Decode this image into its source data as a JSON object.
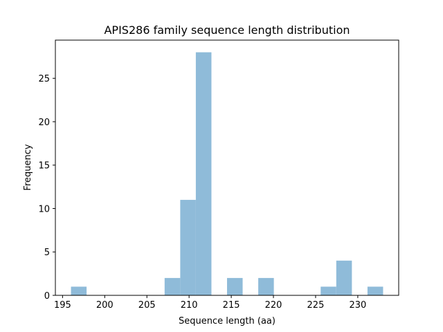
{
  "chart_data": {
    "type": "bar",
    "title": "APIS286 family sequence length distribution",
    "xlabel": "Sequence length (aa)",
    "ylabel": "Frequency",
    "color": "#8fbbd9",
    "bins": [
      {
        "start": 196.0,
        "end": 197.85,
        "count": 1
      },
      {
        "start": 197.85,
        "end": 199.7,
        "count": 0
      },
      {
        "start": 199.7,
        "end": 201.55,
        "count": 0
      },
      {
        "start": 201.55,
        "end": 203.4,
        "count": 0
      },
      {
        "start": 203.4,
        "end": 205.25,
        "count": 0
      },
      {
        "start": 205.25,
        "end": 207.1,
        "count": 0
      },
      {
        "start": 207.1,
        "end": 208.95,
        "count": 2
      },
      {
        "start": 208.95,
        "end": 210.8,
        "count": 11
      },
      {
        "start": 210.8,
        "end": 212.65,
        "count": 28
      },
      {
        "start": 212.65,
        "end": 214.5,
        "count": 0
      },
      {
        "start": 214.5,
        "end": 216.35,
        "count": 2
      },
      {
        "start": 216.35,
        "end": 218.2,
        "count": 0
      },
      {
        "start": 218.2,
        "end": 220.05,
        "count": 2
      },
      {
        "start": 220.05,
        "end": 221.9,
        "count": 0
      },
      {
        "start": 221.9,
        "end": 223.75,
        "count": 0
      },
      {
        "start": 223.75,
        "end": 225.6,
        "count": 0
      },
      {
        "start": 225.6,
        "end": 227.45,
        "count": 1
      },
      {
        "start": 227.45,
        "end": 229.3,
        "count": 4
      },
      {
        "start": 229.3,
        "end": 231.15,
        "count": 0
      },
      {
        "start": 231.15,
        "end": 233.0,
        "count": 1
      }
    ],
    "xlim": [
      194.15,
      234.85
    ],
    "ylim": [
      0,
      29.4
    ],
    "xticks": [
      195,
      200,
      205,
      210,
      215,
      220,
      225,
      230
    ],
    "yticks": [
      0,
      5,
      10,
      15,
      20,
      25
    ],
    "grid": false
  }
}
